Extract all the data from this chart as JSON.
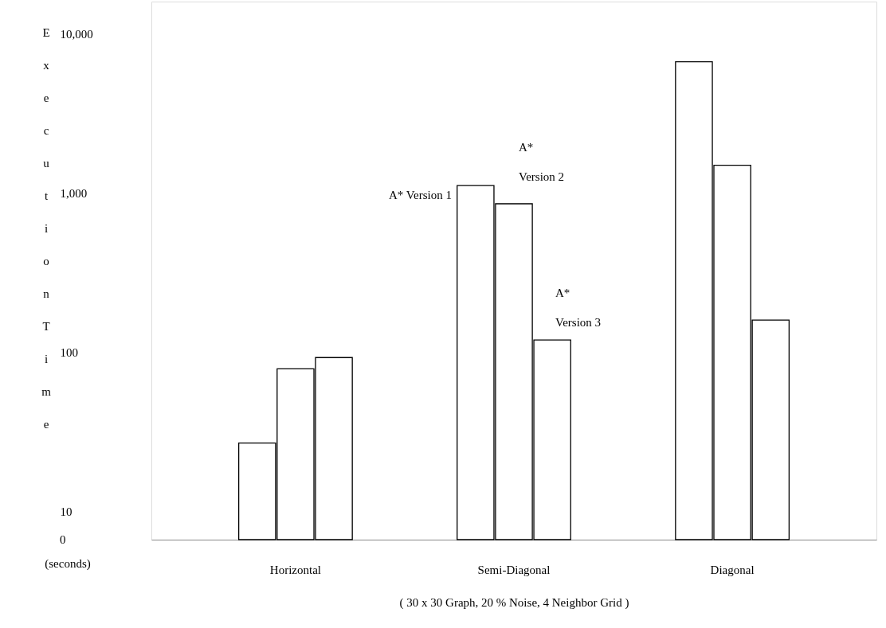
{
  "chart_data": {
    "type": "bar",
    "xlabel": "( 30 x 30 Graph, 20 % Noise, 4 Neighbor Grid )",
    "ylabel": "Execution Time",
    "categories": [
      "Horizontal",
      "Semi-Diagonal",
      "Diagonal"
    ],
    "series": [
      {
        "name": "A* Version 1",
        "color": "#ffffff",
        "values": [
          27,
          1120,
          6700
        ]
      },
      {
        "name": "A* Version 2",
        "color": "#ffffff",
        "values": [
          79,
          860,
          1500
        ]
      },
      {
        "name": "A* Version 3",
        "color": "#ffffff",
        "values": [
          93,
          120,
          160
        ]
      }
    ],
    "log": true,
    "ylim": [
      0,
      16000
    ],
    "yticks": [
      0,
      10,
      100,
      {
        "value": 1000,
        "label": "1,000"
      },
      {
        "value": 10000,
        "label": "10,000"
      }
    ],
    "grid": false,
    "annotations": [
      "(seconds)"
    ]
  }
}
